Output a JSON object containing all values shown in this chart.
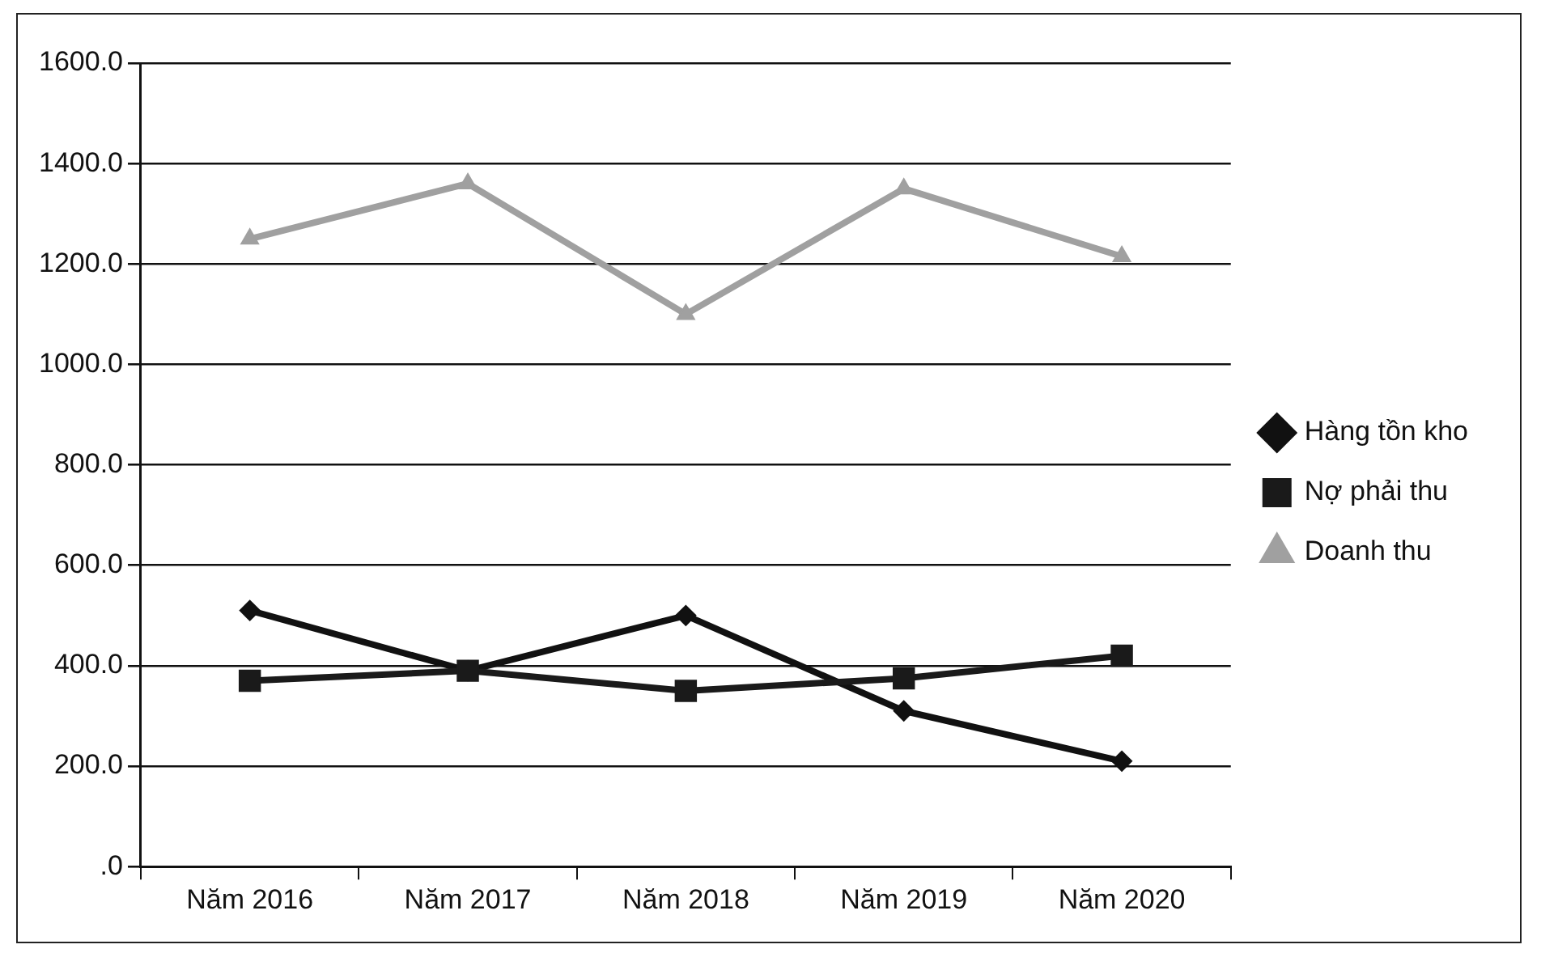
{
  "chart_data": {
    "type": "line",
    "categories": [
      "Năm 2016",
      "Năm 2017",
      "Năm 2018",
      "Năm 2019",
      "Năm 2020"
    ],
    "series": [
      {
        "name": "Hàng tồn kho",
        "color": "#111111",
        "marker": "diamond",
        "values": [
          510,
          390,
          500,
          310,
          210
        ]
      },
      {
        "name": "Nợ phải thu",
        "color": "#1a1a1a",
        "marker": "square",
        "values": [
          370,
          390,
          350,
          375,
          420
        ]
      },
      {
        "name": "Doanh thu",
        "color": "#a0a0a0",
        "marker": "triangle",
        "values": [
          1250,
          1360,
          1100,
          1350,
          1215
        ]
      }
    ],
    "ylim": [
      0,
      1600
    ],
    "yticks": [
      {
        "value": 0,
        "label": ".0"
      },
      {
        "value": 200,
        "label": "200.0"
      },
      {
        "value": 400,
        "label": "400.0"
      },
      {
        "value": 600,
        "label": "600.0"
      },
      {
        "value": 800,
        "label": "800.0"
      },
      {
        "value": 1000,
        "label": "1000.0"
      },
      {
        "value": 1200,
        "label": "1200.0"
      },
      {
        "value": 1400,
        "label": "1400.0"
      },
      {
        "value": 1600,
        "label": "1600.0"
      }
    ],
    "grid": "y",
    "legend": "right",
    "line_style": "solid"
  }
}
